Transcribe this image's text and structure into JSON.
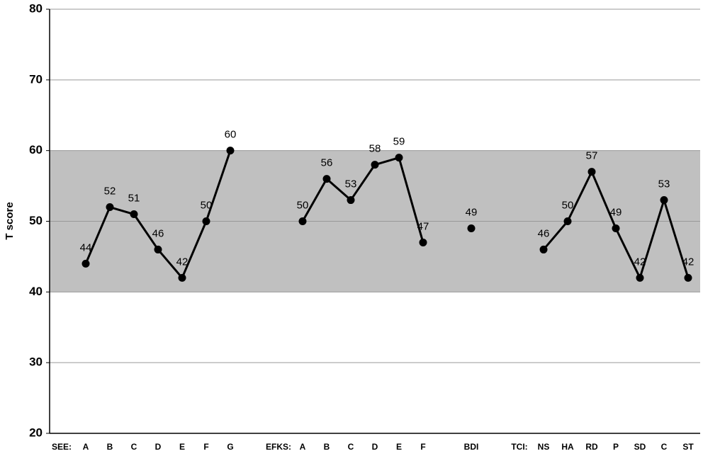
{
  "chart_data": {
    "type": "line",
    "ylabel": "T score",
    "categories": [
      "SEE:",
      "A",
      "B",
      "C",
      "D",
      "E",
      "F",
      "G",
      null,
      "EFKS:",
      "A",
      "B",
      "C",
      "D",
      "E",
      "F",
      null,
      "BDI",
      null,
      "TCI:",
      "NS",
      "HA",
      "RD",
      "P",
      "SD",
      "C",
      "ST"
    ],
    "series": [
      {
        "color": "#000000",
        "values": [
          null,
          44,
          52,
          51,
          46,
          42,
          50,
          60,
          null,
          null,
          50,
          56,
          53,
          58,
          59,
          47,
          null,
          49,
          null,
          null,
          46,
          50,
          57,
          49,
          42,
          53,
          42
        ]
      }
    ],
    "ylim": [
      20,
      80
    ],
    "yticks": [
      20,
      30,
      40,
      50,
      60,
      70,
      80
    ],
    "grid": true,
    "shaded_range": [
      40,
      60
    ],
    "shaded_color": "#c0c0c0"
  }
}
